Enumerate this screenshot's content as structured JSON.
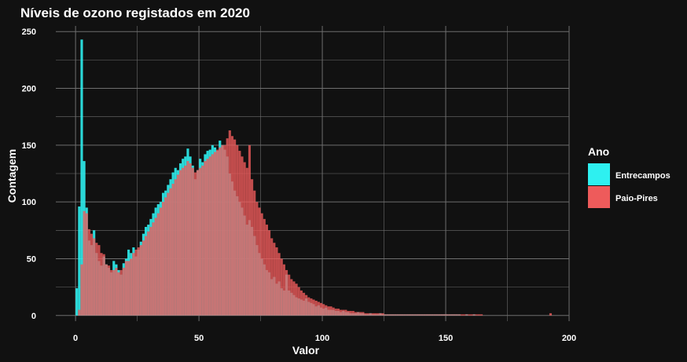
{
  "chart_data": {
    "type": "histogram",
    "title": "Níveis de ozono registados em 2020",
    "xlabel": "Valor",
    "ylabel": "Contagem",
    "xlim": [
      -8,
      200
    ],
    "ylim": [
      -5,
      255
    ],
    "x_ticks": [
      0,
      50,
      100,
      150,
      200
    ],
    "y_ticks": [
      0,
      50,
      100,
      150,
      200,
      250
    ],
    "grid": true,
    "background": "#111111",
    "grid_color": "#6e6e6e",
    "legend": {
      "title": "Ano",
      "position": "right"
    },
    "series": [
      {
        "name": "Entrecampos",
        "color": "#2ef0f0",
        "values": [
          24,
          96,
          243,
          136,
          95,
          66,
          62,
          75,
          55,
          48,
          44,
          52,
          45,
          42,
          38,
          48,
          45,
          40,
          36,
          46,
          50,
          58,
          55,
          60,
          52,
          58,
          65,
          72,
          78,
          80,
          85,
          90,
          95,
          98,
          100,
          108,
          110,
          115,
          120,
          126,
          130,
          128,
          134,
          138,
          140,
          147,
          140,
          132,
          120,
          128,
          138,
          135,
          142,
          145,
          146,
          150,
          148,
          145,
          154,
          150,
          146,
          140,
          125,
          118,
          110,
          105,
          100,
          95,
          88,
          80,
          84,
          78,
          70,
          62,
          55,
          50,
          45,
          40,
          38,
          32,
          34,
          28,
          30,
          24,
          22,
          36,
          22,
          20,
          18,
          16,
          15,
          14,
          13,
          15,
          12,
          11,
          10,
          8,
          9,
          7,
          6,
          7,
          5,
          5,
          5,
          4,
          4,
          3,
          4,
          3,
          3,
          2,
          2,
          2,
          3,
          2,
          2,
          1,
          1,
          2,
          1,
          1,
          1,
          2,
          1,
          1,
          1,
          1,
          1,
          1,
          1,
          1,
          1,
          1,
          1,
          1,
          1,
          1,
          1,
          1,
          1,
          1,
          1,
          1,
          1,
          1,
          1,
          1,
          1,
          1,
          1,
          1,
          1,
          1,
          1,
          1,
          0,
          0,
          1,
          0,
          0,
          1,
          0,
          0,
          0,
          0,
          0,
          0,
          0,
          0,
          0,
          0,
          0,
          0,
          0,
          0,
          0,
          0,
          0,
          0,
          0,
          0,
          0,
          0,
          0,
          0,
          0,
          0,
          0,
          0,
          0,
          0,
          0,
          0,
          0,
          0
        ]
      },
      {
        "name": "Paio-Pires",
        "color": "#ee5b5b",
        "values": [
          0,
          5,
          45,
          92,
          90,
          76,
          72,
          68,
          64,
          62,
          55,
          54,
          45,
          44,
          40,
          40,
          42,
          38,
          40,
          42,
          48,
          48,
          50,
          55,
          58,
          60,
          62,
          66,
          70,
          74,
          78,
          82,
          86,
          90,
          95,
          100,
          104,
          108,
          112,
          116,
          120,
          124,
          128,
          130,
          132,
          136,
          134,
          130,
          126,
          128,
          130,
          132,
          136,
          138,
          140,
          142,
          144,
          146,
          148,
          150,
          150,
          156,
          163,
          158,
          155,
          150,
          145,
          140,
          135,
          130,
          150,
          120,
          110,
          100,
          95,
          90,
          85,
          80,
          75,
          68,
          64,
          60,
          55,
          50,
          45,
          40,
          36,
          32,
          30,
          28,
          25,
          22,
          20,
          18,
          16,
          15,
          14,
          13,
          12,
          11,
          10,
          9,
          8,
          8,
          7,
          6,
          6,
          5,
          5,
          5,
          4,
          4,
          4,
          3,
          3,
          3,
          3,
          2,
          2,
          2,
          2,
          2,
          2,
          2,
          2,
          1,
          1,
          1,
          1,
          1,
          1,
          1,
          1,
          1,
          1,
          1,
          1,
          1,
          1,
          1,
          1,
          1,
          1,
          1,
          1,
          1,
          1,
          1,
          1,
          1,
          1,
          1,
          1,
          1,
          1,
          1,
          1,
          1,
          1,
          1,
          1,
          1,
          1,
          1,
          1,
          0,
          0,
          0,
          0,
          0,
          0,
          0,
          0,
          0,
          0,
          0,
          0,
          0,
          0,
          0,
          0,
          0,
          0,
          0,
          0,
          0,
          0,
          0,
          0,
          0,
          0,
          0,
          2,
          0,
          0,
          0,
          0,
          0,
          0,
          0,
          0,
          0
        ]
      }
    ]
  }
}
